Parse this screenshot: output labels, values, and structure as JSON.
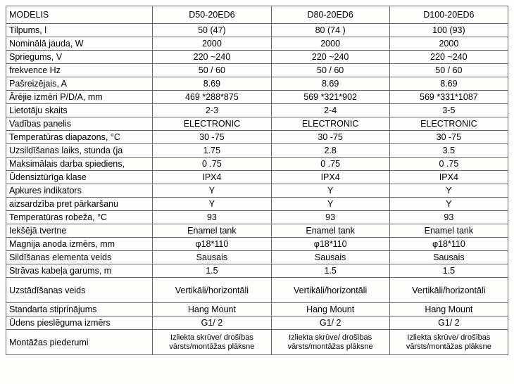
{
  "table": {
    "header_label": "MODELIS",
    "models": [
      "D50-20ED6",
      "D80-20ED6",
      "D100-20ED6"
    ],
    "rows": [
      {
        "label": "Tilpums, l",
        "v": [
          "50  (47)",
          "80  (74 )",
          "100  (93)"
        ]
      },
      {
        "label": "Nominālā jauda, W",
        "v": [
          "2000",
          "2000",
          "2000"
        ]
      },
      {
        "label": "Spriegums, V",
        "v": [
          "220 ~240",
          "220 ~240",
          "220 ~240"
        ]
      },
      {
        "label": "frekvence Hz",
        "v": [
          "50 / 60",
          "50 / 60",
          "50 / 60"
        ]
      },
      {
        "label": "Pašreizējais, A",
        "v": [
          "8.69",
          "8.69",
          "8.69"
        ]
      },
      {
        "label": "Ārējie izmēri P/D/A, mm",
        "v": [
          "469 *288*875",
          "569 *321*902",
          "569 *331*1087"
        ]
      },
      {
        "label": "Lietotāju skaits",
        "v": [
          "2-3",
          "2-4",
          "3-5"
        ]
      },
      {
        "label": "Vadības panelis",
        "v": [
          "ELECTRONIC",
          "ELECTRONIC",
          "ELECTRONIC"
        ]
      },
      {
        "label": "Temperatūras diapazons, °C",
        "v": [
          "30 -75",
          "30 -75",
          "30 -75"
        ]
      },
      {
        "label": "Uzsildīšanas laiks, stunda (ja",
        "v": [
          "1.75",
          "2.8",
          "3.5"
        ]
      },
      {
        "label": "Maksimālais darba spiediens,",
        "v": [
          "0 .75",
          "0 .75",
          "0 .75"
        ]
      },
      {
        "label": "Ūdensiztūrīga klase",
        "v": [
          "IPX4",
          "IPX4",
          "IPX4"
        ]
      },
      {
        "label": "Apkures indikators",
        "v": [
          "Y",
          "Y",
          "Y"
        ]
      },
      {
        "label": "aizsardzība pret pārkaršanu",
        "v": [
          "Y",
          "Y",
          "Y"
        ]
      },
      {
        "label": "Temperatūras robeža, °C",
        "v": [
          "93",
          "93",
          "93"
        ]
      },
      {
        "label": "Iekšējā tvertne",
        "v": [
          "Enamel tank",
          "Enamel tank",
          "Enamel tank"
        ]
      },
      {
        "label": "Magnija anoda izmērs, mm",
        "v": [
          "φ18*110",
          "φ18*110",
          "φ18*110"
        ]
      },
      {
        "label": "Sildīšanas elementa veids",
        "v": [
          "Sausais",
          "Sausais",
          "Sausais"
        ]
      },
      {
        "label": "Strāvas kabeļa garums, m",
        "v": [
          "1.5",
          "1.5",
          "1.5"
        ]
      },
      {
        "label": "Uzstādīšanas veids",
        "v": [
          "Vertikāli/horizontāli",
          "Vertikāli/horizontāli",
          "Vertikāli/horizontāli"
        ],
        "tall": true
      },
      {
        "label": "Standarta stiprinājums",
        "v": [
          "Hang  Mount",
          "Hang  Mount",
          "Hang  Mount"
        ]
      },
      {
        "label": "Ūdens pieslēguma izmērs",
        "v": [
          "G1/ 2",
          "G1/ 2",
          "G1/ 2"
        ]
      },
      {
        "label": "Montāžas piederumi",
        "v": [
          "Izliekta skrūve/ drošības vārsts/montāžas plāksne",
          "Izliekta skrūve/ drošības vārsts/montāžas plāksne",
          "Izliekta skrūve/ drošības vārsts/montāžas plāksne"
        ],
        "small": true,
        "tall": true
      }
    ]
  }
}
